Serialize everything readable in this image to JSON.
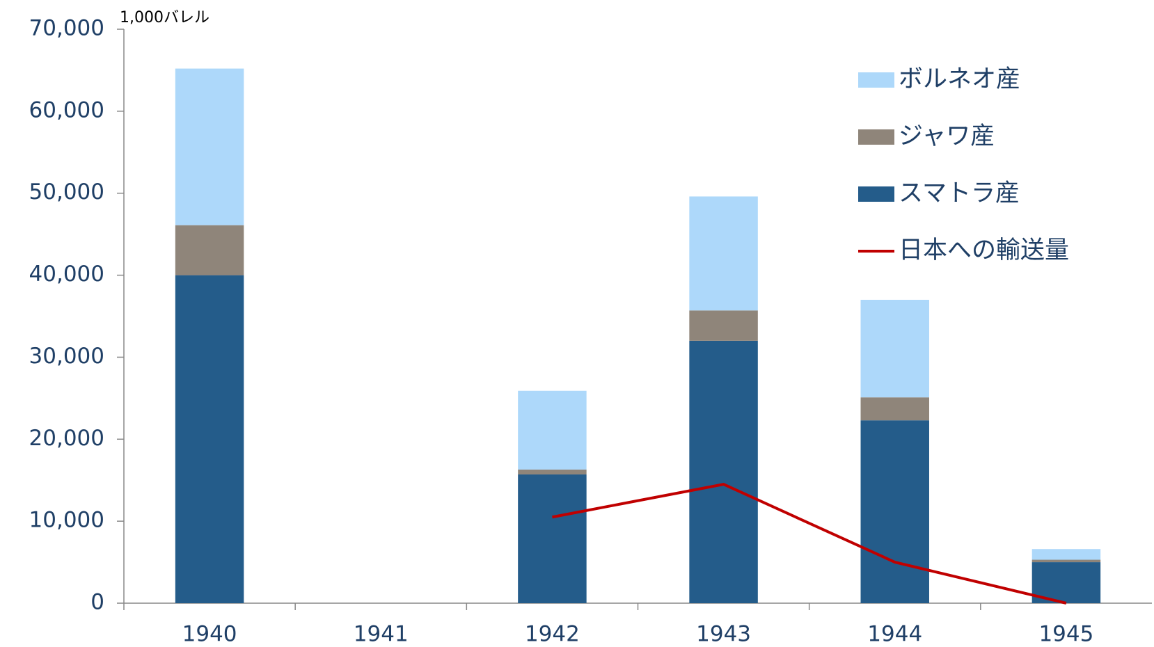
{
  "chart_data": {
    "type": "bar",
    "stacked": true,
    "y_label": "1,000バレル",
    "categories": [
      "1940",
      "1941",
      "1942",
      "1943",
      "1944",
      "1945"
    ],
    "series": [
      {
        "name": "スマトラ産",
        "color": "#245c8a",
        "values": [
          40000,
          null,
          15700,
          32000,
          22300,
          5000
        ]
      },
      {
        "name": "ジャワ産",
        "color": "#8f857a",
        "values": [
          6100,
          null,
          600,
          3700,
          2800,
          300
        ]
      },
      {
        "name": "ボルネオ産",
        "color": "#add8fa",
        "values": [
          19100,
          null,
          9600,
          13900,
          11900,
          1300
        ]
      },
      {
        "name": "日本への輸送量",
        "type": "line",
        "color": "#c00000",
        "values": [
          null,
          null,
          10500,
          14500,
          5000,
          0
        ]
      }
    ],
    "ylim": [
      0,
      70000
    ],
    "yticks": [
      0,
      {
        "value": 10000,
        "label": "10,000"
      },
      {
        "value": 20000,
        "label": "20,000"
      },
      {
        "value": 30000,
        "label": "30,000"
      },
      {
        "value": 40000,
        "label": "40,000"
      },
      {
        "value": 50000,
        "label": "50,000"
      },
      {
        "value": 60000,
        "label": "60,000"
      },
      {
        "value": 70000,
        "label": "70,000"
      }
    ],
    "legend": "upper right"
  }
}
